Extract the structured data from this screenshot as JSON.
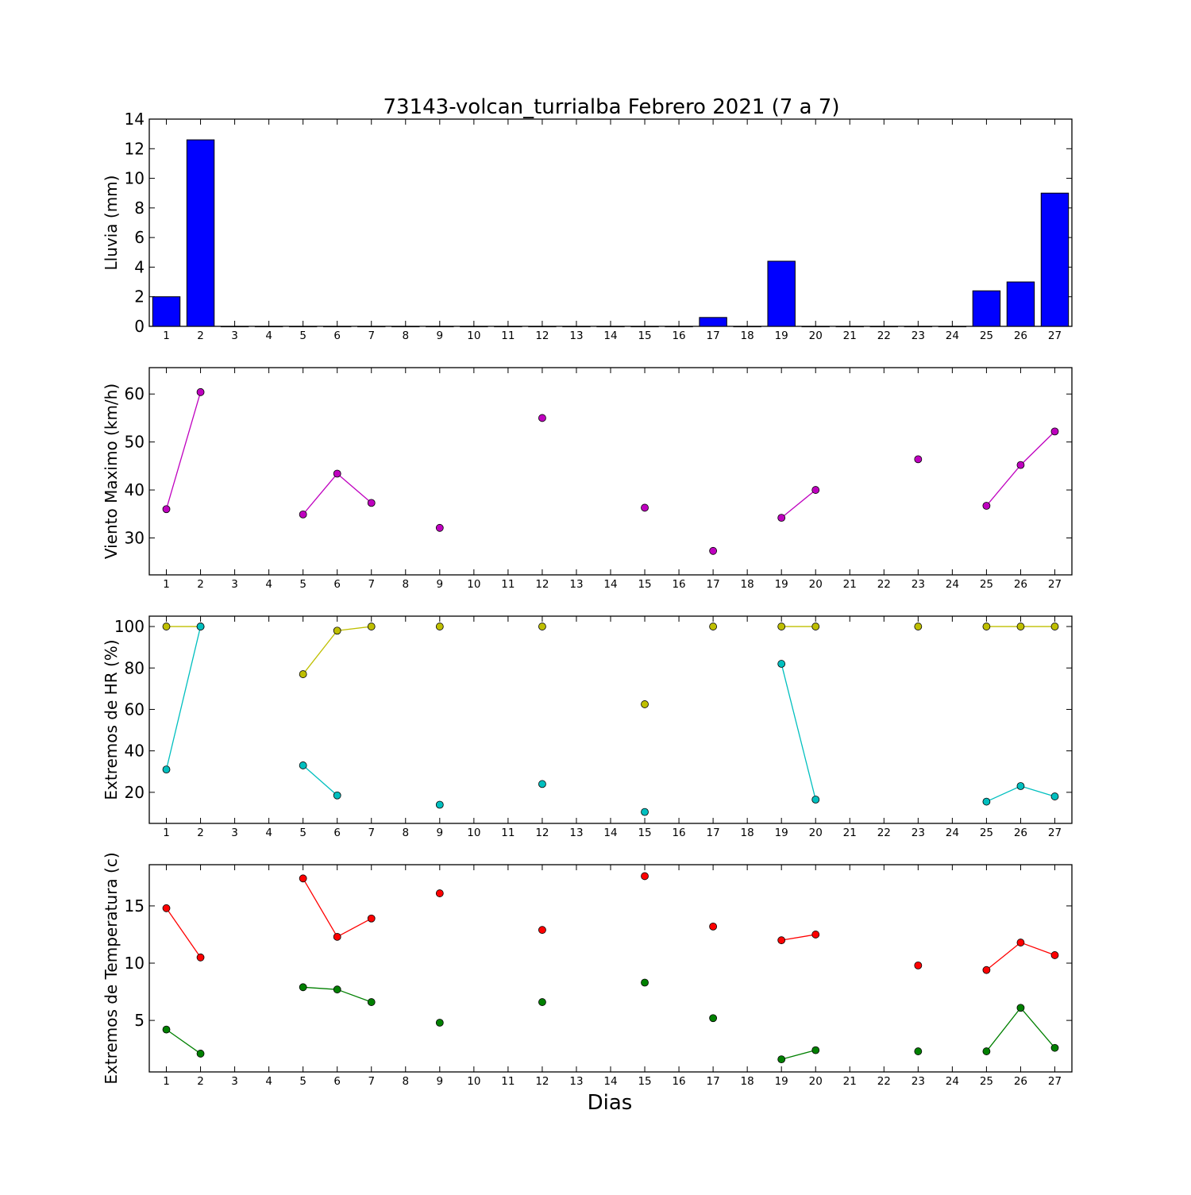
{
  "title": "73143-volcan_turrialba Febrero 2021  (7 a 7)",
  "xlabel": "Dias",
  "chart_data": [
    {
      "type": "bar",
      "ylabel": "Lluvia (mm)",
      "ylim": [
        0,
        14
      ],
      "yticks": [
        0,
        2,
        4,
        6,
        8,
        10,
        12,
        14
      ],
      "xticks": [
        1,
        2,
        3,
        4,
        5,
        6,
        7,
        8,
        9,
        10,
        11,
        12,
        13,
        14,
        15,
        16,
        17,
        18,
        19,
        20,
        21,
        22,
        23,
        24,
        25,
        26,
        27
      ],
      "xlim": [
        0.5,
        27.5
      ],
      "series": [
        {
          "color": "#0000ff",
          "x": [
            1,
            2,
            3,
            4,
            5,
            6,
            7,
            8,
            9,
            10,
            11,
            12,
            13,
            14,
            15,
            16,
            17,
            18,
            19,
            20,
            21,
            22,
            23,
            24,
            25,
            26,
            27
          ],
          "values": [
            2.0,
            12.6,
            0,
            0,
            0,
            0,
            0,
            0,
            0,
            0,
            0,
            0,
            0,
            0,
            0,
            0,
            0.6,
            0,
            4.4,
            0,
            0,
            0,
            0,
            0,
            2.4,
            3.0,
            9.0
          ]
        }
      ],
      "grid": false
    },
    {
      "type": "line",
      "ylabel": "Viento Maximo (km/h)",
      "ylim": [
        22.3,
        65.5
      ],
      "yticks": [
        30,
        40,
        50,
        60
      ],
      "xticks": [
        1,
        2,
        3,
        4,
        5,
        6,
        7,
        8,
        9,
        10,
        11,
        12,
        13,
        14,
        15,
        16,
        17,
        18,
        19,
        20,
        21,
        22,
        23,
        24,
        25,
        26,
        27
      ],
      "xlim": [
        0.5,
        27.5
      ],
      "series": [
        {
          "color": "#bf00bf",
          "x": [
            1,
            2,
            3,
            4,
            5,
            6,
            7,
            8,
            9,
            10,
            11,
            12,
            13,
            14,
            15,
            16,
            17,
            18,
            19,
            20,
            21,
            22,
            23,
            24,
            25,
            26,
            27
          ],
          "values": [
            36.0,
            60.4,
            null,
            null,
            34.9,
            43.4,
            37.3,
            null,
            32.1,
            null,
            null,
            55.0,
            null,
            null,
            36.3,
            null,
            27.3,
            null,
            34.2,
            40.0,
            null,
            null,
            46.4,
            null,
            36.7,
            45.2,
            52.2
          ]
        }
      ],
      "grid": false
    },
    {
      "type": "line",
      "ylabel": "Extremos de HR (%)",
      "ylim": [
        5,
        105
      ],
      "yticks": [
        20,
        40,
        60,
        80,
        100
      ],
      "xticks": [
        1,
        2,
        3,
        4,
        5,
        6,
        7,
        8,
        9,
        10,
        11,
        12,
        13,
        14,
        15,
        16,
        17,
        18,
        19,
        20,
        21,
        22,
        23,
        24,
        25,
        26,
        27
      ],
      "xlim": [
        0.5,
        27.5
      ],
      "series": [
        {
          "color": "#bfbf00",
          "x": [
            1,
            2,
            3,
            4,
            5,
            6,
            7,
            8,
            9,
            10,
            11,
            12,
            13,
            14,
            15,
            16,
            17,
            18,
            19,
            20,
            21,
            22,
            23,
            24,
            25,
            26,
            27
          ],
          "values": [
            100,
            100,
            null,
            null,
            77,
            98,
            100,
            null,
            100,
            null,
            null,
            100,
            null,
            null,
            62.5,
            null,
            100,
            null,
            100,
            100,
            null,
            null,
            100,
            null,
            100,
            100,
            100
          ]
        },
        {
          "color": "#00bfbf",
          "x": [
            1,
            2,
            3,
            4,
            5,
            6,
            7,
            8,
            9,
            10,
            11,
            12,
            13,
            14,
            15,
            16,
            17,
            18,
            19,
            20,
            21,
            22,
            23,
            24,
            25,
            26,
            27
          ],
          "values": [
            31,
            100,
            null,
            null,
            33,
            18.5,
            null,
            null,
            14,
            null,
            null,
            24,
            null,
            null,
            10.5,
            null,
            null,
            null,
            82,
            16.5,
            null,
            null,
            null,
            null,
            15.5,
            23,
            18
          ]
        }
      ],
      "grid": false
    },
    {
      "type": "line",
      "ylabel": "Extremos de Temperatura (c)",
      "ylim": [
        0.5,
        18.6
      ],
      "yticks": [
        5,
        10,
        15
      ],
      "xticks": [
        1,
        2,
        3,
        4,
        5,
        6,
        7,
        8,
        9,
        10,
        11,
        12,
        13,
        14,
        15,
        16,
        17,
        18,
        19,
        20,
        21,
        22,
        23,
        24,
        25,
        26,
        27
      ],
      "xlim": [
        0.5,
        27.5
      ],
      "series": [
        {
          "color": "#ff0000",
          "x": [
            1,
            2,
            3,
            4,
            5,
            6,
            7,
            8,
            9,
            10,
            11,
            12,
            13,
            14,
            15,
            16,
            17,
            18,
            19,
            20,
            21,
            22,
            23,
            24,
            25,
            26,
            27
          ],
          "values": [
            14.8,
            10.5,
            null,
            null,
            17.4,
            12.3,
            13.9,
            null,
            16.1,
            null,
            null,
            12.9,
            null,
            null,
            17.6,
            null,
            13.2,
            null,
            12.0,
            12.5,
            null,
            null,
            9.8,
            null,
            9.4,
            11.8,
            10.7
          ]
        },
        {
          "color": "#008000",
          "x": [
            1,
            2,
            3,
            4,
            5,
            6,
            7,
            8,
            9,
            10,
            11,
            12,
            13,
            14,
            15,
            16,
            17,
            18,
            19,
            20,
            21,
            22,
            23,
            24,
            25,
            26,
            27
          ],
          "values": [
            4.2,
            2.1,
            null,
            null,
            7.9,
            7.7,
            6.6,
            null,
            4.8,
            null,
            null,
            6.6,
            null,
            null,
            8.3,
            null,
            5.2,
            null,
            1.6,
            2.4,
            null,
            null,
            2.3,
            null,
            2.3,
            6.1,
            2.6
          ]
        }
      ],
      "grid": false
    }
  ]
}
